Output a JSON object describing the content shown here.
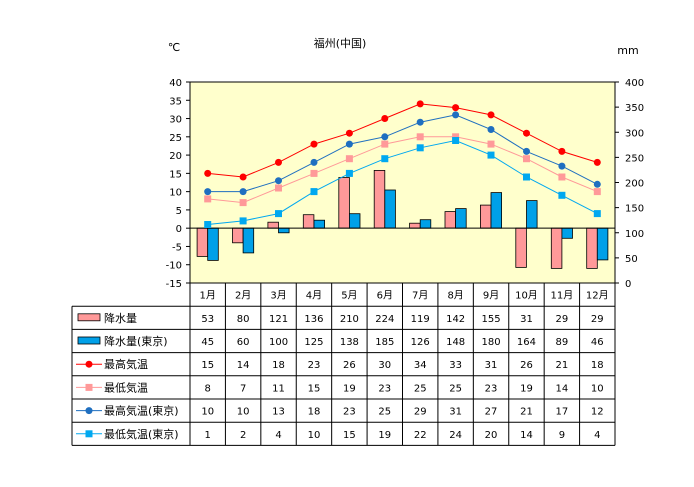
{
  "chart_data": {
    "type": "bar",
    "title": "福州(中国)",
    "left_unit": "℃",
    "right_unit": "mm",
    "left_ylim": [
      -15,
      40
    ],
    "left_ticks": [
      40,
      35,
      30,
      25,
      20,
      15,
      10,
      5,
      0,
      -5,
      -10,
      -15
    ],
    "right_ylim": [
      0,
      400
    ],
    "right_ticks": [
      400,
      350,
      300,
      250,
      200,
      150,
      100,
      50,
      0
    ],
    "categories": [
      "1月",
      "2月",
      "3月",
      "4月",
      "5月",
      "6月",
      "7月",
      "8月",
      "9月",
      "10月",
      "11月",
      "12月"
    ],
    "series": [
      {
        "name": "降水量",
        "kind": "bar",
        "axis": "right",
        "color": "#FF9999",
        "values": [
          53,
          80,
          121,
          136,
          210,
          224,
          119,
          142,
          155,
          31,
          29,
          29
        ]
      },
      {
        "name": "降水量(東京)",
        "kind": "bar",
        "axis": "right",
        "color": "#00A0E8",
        "values": [
          45,
          60,
          100,
          125,
          138,
          185,
          126,
          148,
          180,
          164,
          89,
          46
        ]
      },
      {
        "name": "最高気温",
        "kind": "line",
        "axis": "left",
        "color": "#FF0000",
        "marker": "circle",
        "values": [
          15,
          14,
          18,
          23,
          26,
          30,
          34,
          33,
          31,
          26,
          21,
          18
        ]
      },
      {
        "name": "最低気温",
        "kind": "line",
        "axis": "left",
        "color": "#FF9999",
        "marker": "square",
        "values": [
          8,
          7,
          11,
          15,
          19,
          23,
          25,
          25,
          23,
          19,
          14,
          10
        ]
      },
      {
        "name": "最高気温(東京)",
        "kind": "line",
        "axis": "left",
        "color": "#1F6FC0",
        "marker": "circle",
        "values": [
          10,
          10,
          13,
          18,
          23,
          25,
          29,
          31,
          27,
          21,
          17,
          12
        ]
      },
      {
        "name": "最低気温(東京)",
        "kind": "line",
        "axis": "left",
        "color": "#00A8F0",
        "marker": "square",
        "values": [
          1,
          2,
          4,
          10,
          15,
          19,
          22,
          24,
          20,
          14,
          9,
          4
        ]
      }
    ]
  }
}
